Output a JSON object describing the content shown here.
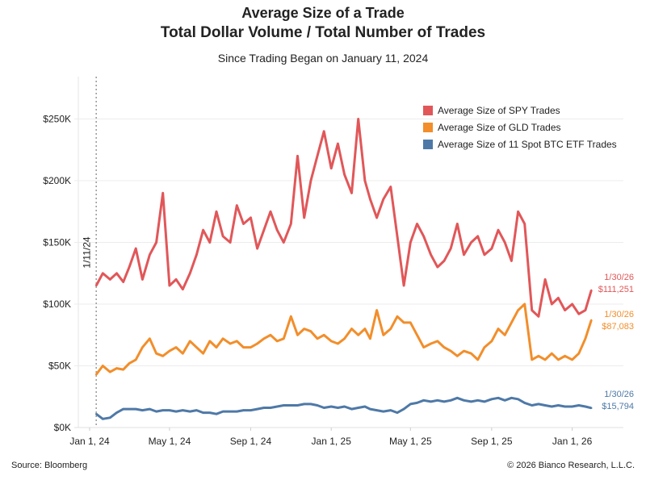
{
  "chart_data": {
    "type": "line",
    "title": "Average Size of a Trade",
    "title2": "Total Dollar Volume / Total Number of Trades",
    "subtitle": "Since Trading Began on January 11, 2024",
    "xlabel": "",
    "ylabel": "",
    "ylim": [
      0,
      280000
    ],
    "yticks": [
      "$0K",
      "$50K",
      "$100K",
      "$150K",
      "$200K",
      "$250K"
    ],
    "ytick_values": [
      0,
      50000,
      100000,
      150000,
      200000,
      250000
    ],
    "xticks": [
      "Jan 1, 24",
      "May 1, 24",
      "Sep 1, 24",
      "Jan 1, 25",
      "May 1, 25",
      "Sep 1, 25",
      "Jan 1, 26"
    ],
    "xtick_dates": [
      "2024-01-01",
      "2024-05-01",
      "2024-09-01",
      "2025-01-01",
      "2025-05-01",
      "2025-09-01",
      "2026-01-01"
    ],
    "grid": "horizontal",
    "legend_position": "top-right",
    "vline": {
      "date": "2024-01-11",
      "label": "1/11/24"
    },
    "x": [
      "2024-01-11",
      "2024-01-21",
      "2024-02-01",
      "2024-02-11",
      "2024-02-21",
      "2024-03-01",
      "2024-03-11",
      "2024-03-21",
      "2024-04-01",
      "2024-04-11",
      "2024-04-21",
      "2024-05-01",
      "2024-05-11",
      "2024-05-21",
      "2024-06-01",
      "2024-06-11",
      "2024-06-21",
      "2024-07-01",
      "2024-07-11",
      "2024-07-21",
      "2024-08-01",
      "2024-08-11",
      "2024-08-21",
      "2024-09-01",
      "2024-09-11",
      "2024-09-21",
      "2024-10-01",
      "2024-10-11",
      "2024-10-21",
      "2024-11-01",
      "2024-11-11",
      "2024-11-21",
      "2024-12-01",
      "2024-12-11",
      "2024-12-21",
      "2025-01-01",
      "2025-01-11",
      "2025-01-21",
      "2025-02-01",
      "2025-02-11",
      "2025-02-21",
      "2025-03-01",
      "2025-03-11",
      "2025-03-21",
      "2025-04-01",
      "2025-04-11",
      "2025-04-21",
      "2025-05-01",
      "2025-05-11",
      "2025-05-21",
      "2025-06-01",
      "2025-06-11",
      "2025-06-21",
      "2025-07-01",
      "2025-07-11",
      "2025-07-21",
      "2025-08-01",
      "2025-08-11",
      "2025-08-21",
      "2025-09-01",
      "2025-09-11",
      "2025-09-21",
      "2025-10-01",
      "2025-10-11",
      "2025-10-21",
      "2025-11-01",
      "2025-11-11",
      "2025-11-21",
      "2025-12-01",
      "2025-12-11",
      "2025-12-21",
      "2026-01-01",
      "2026-01-11",
      "2026-01-21",
      "2026-01-30"
    ],
    "series": [
      {
        "name": "Average Size of SPY Trades",
        "color": "#e15759",
        "end_date": "1/30/26",
        "end_value": "$111,251",
        "values": [
          115000,
          125000,
          120000,
          125000,
          118000,
          130000,
          145000,
          120000,
          140000,
          150000,
          190000,
          115000,
          120000,
          112000,
          125000,
          140000,
          160000,
          150000,
          175000,
          155000,
          150000,
          180000,
          165000,
          170000,
          145000,
          160000,
          175000,
          160000,
          150000,
          165000,
          220000,
          170000,
          200000,
          220000,
          240000,
          210000,
          230000,
          205000,
          190000,
          250000,
          200000,
          185000,
          170000,
          185000,
          195000,
          155000,
          115000,
          150000,
          165000,
          155000,
          140000,
          130000,
          135000,
          145000,
          165000,
          140000,
          150000,
          155000,
          140000,
          145000,
          160000,
          150000,
          135000,
          175000,
          165000,
          95000,
          90000,
          120000,
          100000,
          105000,
          95000,
          100000,
          92000,
          95000,
          111251
        ]
      },
      {
        "name": "Average Size of GLD Trades",
        "color": "#f28e2b",
        "end_date": "1/30/26",
        "end_value": "$87,083",
        "values": [
          43000,
          50000,
          45000,
          48000,
          47000,
          52000,
          55000,
          65000,
          72000,
          60000,
          58000,
          62000,
          65000,
          60000,
          70000,
          65000,
          60000,
          70000,
          65000,
          72000,
          68000,
          70000,
          65000,
          65000,
          68000,
          72000,
          75000,
          70000,
          72000,
          90000,
          75000,
          80000,
          78000,
          72000,
          75000,
          70000,
          68000,
          72000,
          80000,
          75000,
          80000,
          72000,
          95000,
          75000,
          80000,
          90000,
          85000,
          85000,
          75000,
          65000,
          68000,
          70000,
          65000,
          62000,
          58000,
          62000,
          60000,
          55000,
          65000,
          70000,
          80000,
          75000,
          85000,
          95000,
          100000,
          55000,
          58000,
          55000,
          60000,
          55000,
          58000,
          55000,
          60000,
          72000,
          87083
        ]
      },
      {
        "name": "Average Size of 11 Spot BTC ETF Trades",
        "color": "#4e79a7",
        "end_date": "1/30/26",
        "end_value": "$15,794",
        "values": [
          11000,
          7000,
          8000,
          12000,
          15000,
          15000,
          15000,
          14000,
          15000,
          13000,
          14000,
          14000,
          13000,
          14000,
          13000,
          14000,
          12000,
          12000,
          11000,
          13000,
          13000,
          13000,
          14000,
          14000,
          15000,
          16000,
          16000,
          17000,
          18000,
          18000,
          18000,
          19000,
          19000,
          18000,
          16000,
          17000,
          16000,
          17000,
          15000,
          16000,
          17000,
          15000,
          14000,
          13000,
          14000,
          12000,
          15000,
          19000,
          20000,
          22000,
          21000,
          22000,
          21000,
          22000,
          24000,
          22000,
          21000,
          22000,
          21000,
          23000,
          24000,
          22000,
          24000,
          23000,
          20000,
          18000,
          19000,
          18000,
          17000,
          18000,
          17000,
          17000,
          18000,
          17000,
          15794
        ]
      }
    ]
  },
  "footer": {
    "source": "Source: Bloomberg",
    "copyright": "© 2026 Bianco Research, L.L.C."
  }
}
